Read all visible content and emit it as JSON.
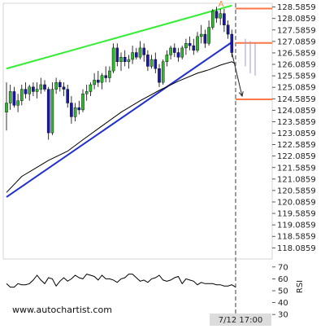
{
  "watermark": "www.autochartist.com",
  "time_label": "7/12 17:00",
  "pattern_label": "A",
  "rsi_axis_label": "RSI",
  "colors": {
    "background": "#ffffff",
    "bull_candle": "#2fb52f",
    "bear_candle": "#1a1aa0",
    "resistance_line": "#33ee33",
    "support_line": "#1f2fd0",
    "moving_average": "#000000",
    "target_level": "#ff7744",
    "pattern_label": "#ff8c40",
    "time_marker": "#7f7f7f"
  },
  "chart_data": [
    {
      "type": "candlestick",
      "y_ticks": [
        128.5859,
        128.0859,
        127.5859,
        127.0859,
        126.5859,
        126.0859,
        125.5859,
        125.0859,
        124.5859,
        124.0859,
        123.5859,
        123.0859,
        122.5859,
        122.0859,
        121.5859,
        121.0859,
        120.5859,
        120.0859,
        119.5859,
        119.0859,
        118.5859,
        118.0859
      ],
      "ylim": [
        117.6,
        128.75
      ],
      "x_count": 62,
      "candles": [
        [
          124.0,
          125.3,
          123.2,
          124.4
        ],
        [
          124.4,
          125.2,
          124.1,
          124.9
        ],
        [
          124.9,
          125.1,
          124.2,
          124.3
        ],
        [
          124.3,
          124.8,
          124.0,
          124.5
        ],
        [
          124.5,
          125.2,
          124.3,
          125.0
        ],
        [
          125.0,
          125.3,
          124.6,
          124.8
        ],
        [
          124.8,
          125.2,
          124.5,
          125.1
        ],
        [
          125.1,
          125.3,
          124.7,
          124.9
        ],
        [
          124.9,
          125.3,
          124.6,
          125.0
        ],
        [
          125.0,
          125.5,
          124.8,
          125.2
        ],
        [
          125.2,
          125.4,
          124.9,
          125.0
        ],
        [
          125.0,
          125.1,
          122.8,
          123.1
        ],
        [
          123.1,
          125.3,
          123.0,
          125.0
        ],
        [
          125.0,
          125.5,
          124.8,
          125.3
        ],
        [
          125.3,
          125.4,
          124.9,
          125.1
        ],
        [
          125.1,
          125.3,
          124.7,
          125.0
        ],
        [
          125.0,
          125.2,
          124.2,
          124.4
        ],
        [
          124.4,
          124.7,
          123.5,
          123.8
        ],
        [
          123.8,
          124.4,
          123.6,
          124.2
        ],
        [
          124.2,
          124.5,
          123.9,
          124.1
        ],
        [
          124.1,
          125.0,
          124.0,
          124.8
        ],
        [
          124.8,
          125.2,
          124.5,
          124.9
        ],
        [
          124.9,
          125.3,
          124.7,
          125.2
        ],
        [
          125.2,
          125.7,
          125.0,
          125.4
        ],
        [
          125.4,
          125.8,
          125.1,
          125.3
        ],
        [
          125.3,
          125.7,
          125.0,
          125.6
        ],
        [
          125.6,
          126.0,
          125.3,
          125.5
        ],
        [
          125.5,
          126.0,
          125.3,
          125.8
        ],
        [
          125.8,
          127.0,
          125.7,
          126.8
        ],
        [
          126.8,
          127.0,
          126.0,
          126.2
        ],
        [
          126.2,
          126.6,
          125.8,
          126.4
        ],
        [
          126.4,
          126.7,
          126.0,
          126.2
        ],
        [
          126.2,
          126.5,
          125.9,
          126.3
        ],
        [
          126.3,
          126.9,
          126.1,
          126.6
        ],
        [
          126.6,
          126.8,
          126.3,
          126.4
        ],
        [
          126.4,
          127.1,
          126.3,
          126.8
        ],
        [
          126.8,
          127.0,
          126.2,
          126.5
        ],
        [
          126.5,
          126.7,
          125.8,
          126.0
        ],
        [
          126.0,
          126.5,
          125.9,
          126.3
        ],
        [
          126.3,
          126.6,
          125.7,
          125.9
        ],
        [
          125.9,
          126.1,
          125.1,
          125.3
        ],
        [
          125.3,
          126.3,
          125.2,
          126.2
        ],
        [
          126.2,
          126.7,
          126.0,
          126.5
        ],
        [
          126.5,
          126.9,
          126.3,
          126.8
        ],
        [
          126.8,
          127.0,
          126.4,
          126.6
        ],
        [
          126.6,
          126.8,
          126.2,
          126.4
        ],
        [
          126.4,
          126.9,
          126.3,
          126.8
        ],
        [
          126.8,
          127.2,
          126.5,
          127.0
        ],
        [
          127.0,
          127.3,
          126.7,
          126.9
        ],
        [
          126.9,
          127.2,
          126.5,
          126.7
        ],
        [
          126.7,
          127.5,
          126.6,
          127.3
        ],
        [
          127.3,
          127.8,
          127.0,
          127.4
        ],
        [
          127.4,
          127.6,
          126.8,
          127.0
        ],
        [
          127.0,
          128.0,
          126.9,
          127.7
        ],
        [
          127.7,
          128.5,
          127.6,
          128.4
        ],
        [
          128.4,
          128.6,
          127.9,
          128.1
        ],
        [
          128.1,
          128.5,
          127.8,
          128.3
        ],
        [
          128.3,
          128.5,
          127.5,
          127.8
        ],
        [
          127.8,
          128.0,
          127.2,
          127.4
        ],
        [
          127.4,
          127.6,
          126.4,
          126.6
        ]
      ],
      "moving_average": [
        [
          0,
          120.5
        ],
        [
          4,
          121.2
        ],
        [
          8,
          121.6
        ],
        [
          11,
          121.9
        ],
        [
          16,
          122.3
        ],
        [
          20,
          122.8
        ],
        [
          25,
          123.4
        ],
        [
          30,
          124.0
        ],
        [
          35,
          124.5
        ],
        [
          40,
          124.95
        ],
        [
          45,
          125.35
        ],
        [
          50,
          125.7
        ],
        [
          53,
          125.85
        ],
        [
          56,
          126.05
        ],
        [
          59,
          126.2
        ],
        [
          60,
          126.1
        ]
      ],
      "resistance_line": [
        [
          0,
          125.9
        ],
        [
          59,
          128.65
        ]
      ],
      "support_line": [
        [
          0,
          120.3
        ],
        [
          59,
          127.05
        ]
      ],
      "target_levels": [
        128.52,
        127.02,
        124.56
      ],
      "forecast_bars": [
        [
          126.0,
          127.2
        ],
        [
          125.7,
          127.1
        ],
        [
          125.6,
          127.0
        ]
      ],
      "forecast_arrow": [
        [
          59,
          126.6
        ],
        [
          61.7,
          124.7
        ]
      ],
      "pattern_label_anchor": [
        58,
        128.62
      ],
      "time_marker_index": 60,
      "grid": false
    },
    {
      "type": "line",
      "ylabel": "RSI",
      "y_ticks": [
        70,
        60,
        50,
        40,
        30
      ],
      "ylim": [
        26,
        74
      ],
      "values": [
        56,
        53,
        53,
        56,
        55,
        55,
        56,
        59,
        63,
        59,
        56,
        61,
        60,
        54,
        58,
        61,
        58,
        60,
        63,
        61,
        60,
        64,
        63,
        62,
        59,
        63,
        60,
        60,
        59,
        57,
        60,
        61,
        64,
        64,
        61,
        58,
        59,
        57,
        60,
        61,
        63,
        59,
        58,
        59,
        61,
        62,
        56,
        60,
        59,
        58,
        55,
        57,
        56,
        56,
        56,
        55,
        55,
        54,
        54,
        55,
        53
      ],
      "grid": false
    }
  ]
}
